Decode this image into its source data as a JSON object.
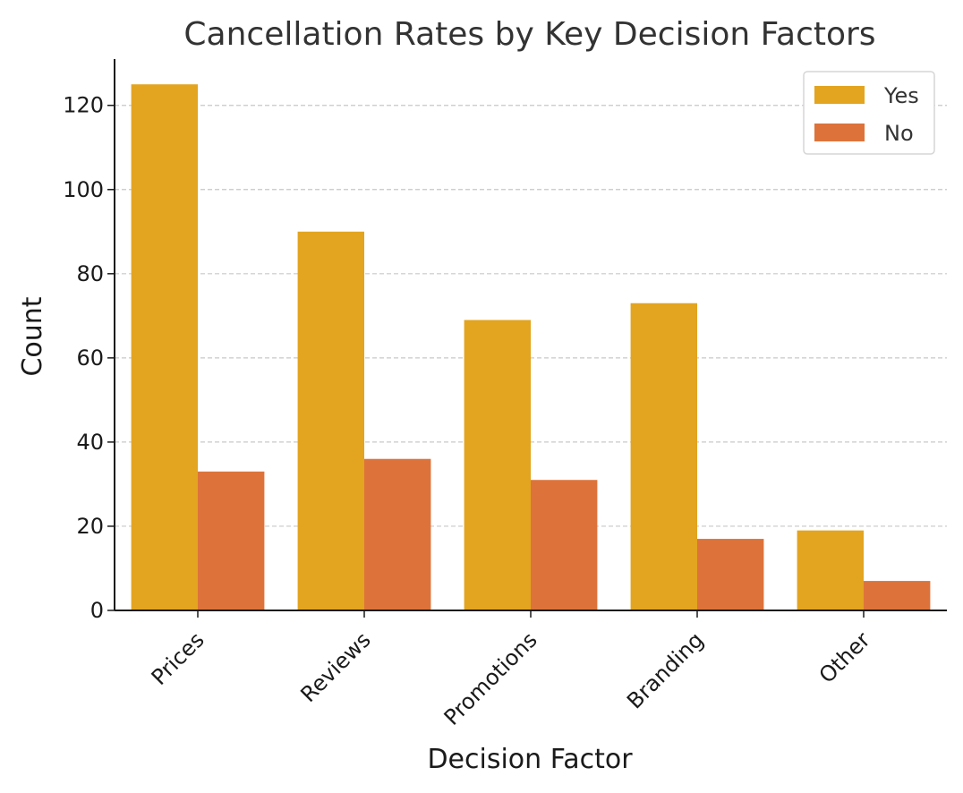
{
  "chart_data": {
    "type": "bar",
    "title": "Cancellation Rates by Key Decision Factors",
    "xlabel": "Decision Factor",
    "ylabel": "Count",
    "categories": [
      "Prices",
      "Reviews",
      "Promotions",
      "Branding",
      "Other"
    ],
    "series": [
      {
        "name": "Yes",
        "values": [
          125,
          90,
          69,
          73,
          19
        ],
        "color": "#e3a41f"
      },
      {
        "name": "No",
        "values": [
          33,
          36,
          31,
          17,
          7
        ],
        "color": "#dd733a"
      }
    ],
    "ylim": [
      0,
      131
    ],
    "yticks": [
      0,
      20,
      40,
      60,
      80,
      100,
      120
    ],
    "grid": "y-dashed",
    "legend_position": "top-right"
  }
}
